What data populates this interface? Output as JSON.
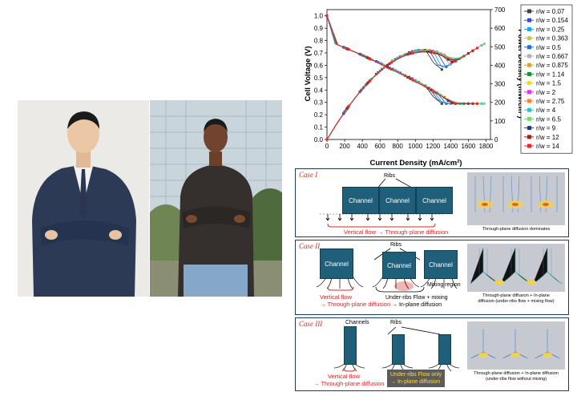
{
  "chart": {
    "y1_label": "Cell Voltage (V)",
    "y2_label": "Power Density (mW/cm²)",
    "x_label": "Current Density (mA/cm²)",
    "y1_ticks": [
      "0.0",
      "0.1",
      "0.2",
      "0.3",
      "0.4",
      "0.5",
      "0.6",
      "0.7",
      "0.8",
      "0.9",
      "1.0"
    ],
    "y2_ticks": [
      "0",
      "100",
      "200",
      "300",
      "400",
      "500",
      "600",
      "700"
    ],
    "x_ticks": [
      "0",
      "200",
      "400",
      "600",
      "800",
      "1000",
      "1200",
      "1400",
      "1600",
      "1800"
    ]
  },
  "chart_data": {
    "type": "line",
    "x_range": [
      0,
      1850
    ],
    "y_left_range": [
      0,
      1.05
    ],
    "y_right_range": [
      0,
      700
    ],
    "legend_position": "right",
    "series": [
      {
        "name": "r/w = 0.07",
        "color": "#404040",
        "peak_x": 1250,
        "peak_p": 440,
        "max_x": 1300
      },
      {
        "name": "r/w = 0.154",
        "color": "#2b4fd8",
        "peak_x": 1300,
        "peak_p": 520,
        "max_x": 1350
      },
      {
        "name": "r/w = 0.25",
        "color": "#1fa2e8",
        "peak_x": 1350,
        "peak_p": 530,
        "max_x": 1400
      },
      {
        "name": "r/w = 0.363",
        "color": "#c8cc3c",
        "peak_x": 1400,
        "peak_p": 545,
        "max_x": 1450
      },
      {
        "name": "r/w = 0.5",
        "color": "#1f6ed4",
        "peak_x": 1350,
        "peak_p": 570,
        "max_x": 1450
      },
      {
        "name": "r/w = 0.667",
        "color": "#b0b0b0",
        "peak_x": 1400,
        "peak_p": 560,
        "max_x": 1500
      },
      {
        "name": "r/w = 0.875",
        "color": "#e8a020",
        "peak_x": 1450,
        "peak_p": 570,
        "max_x": 1550
      },
      {
        "name": "r/w = 1.14",
        "color": "#1e8a3a",
        "peak_x": 1400,
        "peak_p": 590,
        "max_x": 1550
      },
      {
        "name": "r/w = 1.5",
        "color": "#f0e018",
        "peak_x": 1450,
        "peak_p": 600,
        "max_x": 1600
      },
      {
        "name": "r/w = 2",
        "color": "#d83cd8",
        "peak_x": 1500,
        "peak_p": 605,
        "max_x": 1650
      },
      {
        "name": "r/w = 2.75",
        "color": "#f08838",
        "peak_x": 1550,
        "peak_p": 600,
        "max_x": 1700
      },
      {
        "name": "r/w = 4",
        "color": "#20c8c8",
        "peak_x": 1600,
        "peak_p": 595,
        "max_x": 1750
      },
      {
        "name": "r/w = 6.5",
        "color": "#78d878",
        "peak_x": 1650,
        "peak_p": 590,
        "max_x": 1780
      },
      {
        "name": "r/w = 9",
        "color": "#183c88",
        "peak_x": 1450,
        "peak_p": 620,
        "max_x": 1600
      },
      {
        "name": "r/w = 12",
        "color": "#a02020",
        "peak_x": 1500,
        "peak_p": 615,
        "max_x": 1650
      },
      {
        "name": "r/w = 14",
        "color": "#e82828",
        "peak_x": 1550,
        "peak_p": 610,
        "max_x": 1700
      }
    ]
  },
  "cases": {
    "case1": {
      "label": "Case I",
      "ribs": "Ribs",
      "channels": [
        "Channel",
        "Channel",
        "Channel"
      ],
      "flow_text": "Vertical flow → Through-plane diffusion",
      "caption": "Through-plane diffusion dominates"
    },
    "case2": {
      "label": "Case II",
      "ribs": "Ribs",
      "channels": [
        "Channel",
        "Channel",
        "Channel"
      ],
      "flow_text_1": "Vertical flow",
      "flow_text_2": "→ Through-plane diffusion",
      "mixing_region": "Mixing region",
      "under_ribs": "Under-ribs Flow + mixing",
      "in_plane": "→ In-plane diffusion",
      "caption_1": "Through-plane diffusion + In-plane",
      "caption_2": "diffusion (under-ribs flow + mixing flow)"
    },
    "case3": {
      "label": "Case III",
      "channels_label": "Channels",
      "ribs": "Ribs",
      "flow_text_1": "Vertical flow",
      "flow_text_2": "→ Through-plane diffusion",
      "box_1": "Under-ribs Flow only",
      "box_2": "→ In-plane diffusion",
      "caption_1": "Through-plane diffusion + In-plane diffusion",
      "caption_2": "(under-ribs flow without mixing)"
    }
  }
}
